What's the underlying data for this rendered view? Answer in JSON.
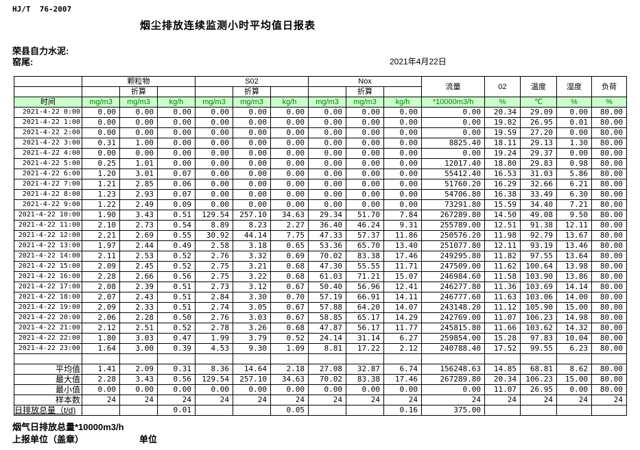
{
  "page": {
    "standard_code": "HJ/T  76-2007",
    "title": "烟尘排放连续监测小时平均值日报表",
    "company": "荣县自力水泥:",
    "location": "窑尾:",
    "date": "2021年4月22日"
  },
  "colors": {
    "header_bg": "#ccffcc",
    "unit_text": "#008000",
    "border": "#000000"
  },
  "table": {
    "time_header": "时间",
    "groups": [
      {
        "label": "颗粒物",
        "sub": "折算"
      },
      {
        "label": "S02",
        "sub": "折算"
      },
      {
        "label": "Nox",
        "sub": "折算"
      }
    ],
    "singles": [
      "流量",
      "02",
      "温度",
      "湿度",
      "负荷"
    ],
    "units": [
      "mg/m3",
      "mg/m3",
      "kg/h",
      "mg/m3",
      "mg/m3",
      "kg/h",
      "mg/m3",
      "mg/m3",
      "kg/h",
      "*10000m3/h",
      "%",
      "℃",
      "%",
      "%"
    ],
    "rows": [
      {
        "time": "2021-4-22 0:00",
        "values": [
          "0.00",
          "0.00",
          "0.00",
          "0.00",
          "0.00",
          "0.00",
          "0.00",
          "0.00",
          "0.00",
          "0.00",
          "20.34",
          "29.09",
          "0.00",
          "80.00"
        ]
      },
      {
        "time": "2021-4-22 1:00",
        "values": [
          "0.00",
          "0.00",
          "0.00",
          "0.00",
          "0.00",
          "0.00",
          "0.00",
          "0.00",
          "0.00",
          "0.00",
          "19.82",
          "26.95",
          "0.01",
          "80.00"
        ]
      },
      {
        "time": "2021-4-22 2:00",
        "values": [
          "0.00",
          "0.00",
          "0.00",
          "0.00",
          "0.00",
          "0.00",
          "0.00",
          "0.00",
          "0.00",
          "0.00",
          "19.59",
          "27.20",
          "0.00",
          "80.00"
        ]
      },
      {
        "time": "2021-4-22 3:00",
        "values": [
          "0.31",
          "1.00",
          "0.00",
          "0.00",
          "0.00",
          "0.00",
          "0.00",
          "0.00",
          "0.00",
          "8825.40",
          "18.11",
          "29.13",
          "1.30",
          "80.00"
        ]
      },
      {
        "time": "2021-4-22 4:00",
        "values": [
          "0.00",
          "0.00",
          "0.00",
          "0.00",
          "0.00",
          "0.00",
          "0.00",
          "0.00",
          "0.00",
          "0.00",
          "19.24",
          "29.37",
          "0.00",
          "80.00"
        ]
      },
      {
        "time": "2021-4-22 5:00",
        "values": [
          "0.25",
          "1.01",
          "0.00",
          "0.00",
          "0.00",
          "0.00",
          "0.00",
          "0.00",
          "0.00",
          "12017.40",
          "18.80",
          "29.83",
          "0.98",
          "80.00"
        ]
      },
      {
        "time": "2021-4-22 6:00",
        "values": [
          "1.20",
          "3.01",
          "0.07",
          "0.00",
          "0.00",
          "0.00",
          "0.00",
          "0.00",
          "0.00",
          "55412.40",
          "16.53",
          "31.03",
          "5.86",
          "80.00"
        ]
      },
      {
        "time": "2021-4-22 7:00",
        "values": [
          "1.21",
          "2.85",
          "0.06",
          "0.00",
          "0.00",
          "0.00",
          "0.00",
          "0.00",
          "0.00",
          "51760.20",
          "16.29",
          "32.66",
          "6.21",
          "80.00"
        ]
      },
      {
        "time": "2021-4-22 8:00",
        "values": [
          "1.23",
          "2.93",
          "0.07",
          "0.00",
          "0.00",
          "0.00",
          "0.00",
          "0.00",
          "0.00",
          "54706.80",
          "16.38",
          "33.49",
          "6.30",
          "80.00"
        ]
      },
      {
        "time": "2021-4-22 9:00",
        "values": [
          "1.22",
          "2.49",
          "0.09",
          "0.00",
          "0.00",
          "0.00",
          "0.00",
          "0.00",
          "0.00",
          "73291.80",
          "15.59",
          "34.40",
          "7.21",
          "80.00"
        ]
      },
      {
        "time": "2021-4-22 10:00",
        "values": [
          "1.90",
          "3.43",
          "0.51",
          "129.54",
          "257.10",
          "34.63",
          "29.34",
          "51.70",
          "7.84",
          "267289.80",
          "14.50",
          "49.08",
          "9.50",
          "80.00"
        ]
      },
      {
        "time": "2021-4-22 11:00",
        "values": [
          "2.10",
          "2.73",
          "0.54",
          "8.89",
          "8.23",
          "2.27",
          "36.40",
          "46.24",
          "9.31",
          "255789.00",
          "12.51",
          "91.38",
          "12.11",
          "80.00"
        ]
      },
      {
        "time": "2021-4-22 12:00",
        "values": [
          "2.21",
          "2.69",
          "0.55",
          "30.92",
          "44.14",
          "7.75",
          "47.33",
          "57.37",
          "11.86",
          "250576.20",
          "11.98",
          "92.79",
          "13.67",
          "80.00"
        ]
      },
      {
        "time": "2021-4-22 13:00",
        "values": [
          "1.97",
          "2.44",
          "0.49",
          "2.58",
          "3.18",
          "0.65",
          "53.36",
          "65.70",
          "13.40",
          "251077.80",
          "12.11",
          "93.19",
          "13.46",
          "80.00"
        ]
      },
      {
        "time": "2021-4-22 14:00",
        "values": [
          "2.11",
          "2.53",
          "0.52",
          "2.76",
          "3.32",
          "0.69",
          "70.02",
          "83.38",
          "17.46",
          "249295.80",
          "11.82",
          "97.55",
          "13.64",
          "80.00"
        ]
      },
      {
        "time": "2021-4-22 15:00",
        "values": [
          "2.09",
          "2.45",
          "0.52",
          "2.75",
          "3.21",
          "0.68",
          "47.30",
          "55.55",
          "11.71",
          "247509.00",
          "11.62",
          "100.64",
          "13.98",
          "80.00"
        ]
      },
      {
        "time": "2021-4-22 16:00",
        "values": [
          "2.28",
          "2.66",
          "0.56",
          "2.75",
          "3.22",
          "0.68",
          "61.03",
          "71.21",
          "15.07",
          "246984.60",
          "11.58",
          "103.90",
          "13.86",
          "80.00"
        ]
      },
      {
        "time": "2021-4-22 17:00",
        "values": [
          "2.08",
          "2.39",
          "0.51",
          "2.73",
          "3.12",
          "0.67",
          "50.40",
          "56.96",
          "12.41",
          "246277.80",
          "11.36",
          "103.69",
          "14.14",
          "80.00"
        ]
      },
      {
        "time": "2021-4-22 18:00",
        "values": [
          "2.07",
          "2.43",
          "0.51",
          "2.84",
          "3.30",
          "0.70",
          "57.19",
          "66.91",
          "14.11",
          "246777.60",
          "11.63",
          "103.06",
          "14.00",
          "80.00"
        ]
      },
      {
        "time": "2021-4-22 19:00",
        "values": [
          "2.09",
          "2.33",
          "0.51",
          "2.74",
          "3.05",
          "0.67",
          "57.88",
          "64.20",
          "14.07",
          "243148.20",
          "11.12",
          "105.90",
          "15.00",
          "80.00"
        ]
      },
      {
        "time": "2021-4-22 20:00",
        "values": [
          "2.06",
          "2.28",
          "0.50",
          "2.76",
          "3.03",
          "0.67",
          "58.85",
          "65.17",
          "14.29",
          "242769.00",
          "11.07",
          "106.23",
          "14.98",
          "80.00"
        ]
      },
      {
        "time": "2021-4-22 21:00",
        "values": [
          "2.12",
          "2.51",
          "0.52",
          "2.78",
          "3.26",
          "0.68",
          "47.87",
          "56.17",
          "11.77",
          "245815.80",
          "11.66",
          "103.62",
          "14.32",
          "80.00"
        ]
      },
      {
        "time": "2021-4-22 22:00",
        "values": [
          "1.80",
          "3.03",
          "0.47",
          "1.99",
          "3.79",
          "0.52",
          "24.14",
          "31.14",
          "6.27",
          "259854.00",
          "15.28",
          "97.83",
          "10.04",
          "80.00"
        ]
      },
      {
        "time": "2021-4-22 23:00",
        "values": [
          "1.64",
          "3.00",
          "0.39",
          "4.53",
          "9.30",
          "1.09",
          "8.81",
          "17.22",
          "2.12",
          "240788.40",
          "17.52",
          "99.55",
          "6.23",
          "80.00"
        ]
      }
    ],
    "summary_rows": [
      {
        "label": "平均值",
        "values": [
          "1.41",
          "2.09",
          "0.31",
          "8.36",
          "14.64",
          "2.18",
          "27.08",
          "32.87",
          "6.74",
          "156248.63",
          "14.85",
          "68.81",
          "8.62",
          "80.00"
        ]
      },
      {
        "label": "最大值",
        "values": [
          "2.28",
          "3.43",
          "0.56",
          "129.54",
          "257.10",
          "34.63",
          "70.02",
          "83.38",
          "17.46",
          "267289.80",
          "20.34",
          "106.23",
          "15.00",
          "80.00"
        ]
      },
      {
        "label": "最小值",
        "values": [
          "0.00",
          "0.00",
          "0.00",
          "0.00",
          "0.00",
          "0.00",
          "0.00",
          "0.00",
          "0.00",
          "0.00",
          "11.07",
          "26.95",
          "0.00",
          "80.00"
        ]
      },
      {
        "label": "样本数",
        "values": [
          "24",
          "24",
          "24",
          "24",
          "24",
          "24",
          "24",
          "24",
          "24",
          "24",
          "24",
          "24",
          "24",
          "24"
        ]
      }
    ],
    "total_row": {
      "label": "日排放总量（t/d)",
      "values": [
        "",
        "",
        "0.01",
        "",
        "",
        "0.05",
        "",
        "",
        "0.16",
        "375.00",
        "",
        "",
        "",
        ""
      ]
    }
  },
  "footer": {
    "flue_note": "烟气日排放总量*10000m3/h",
    "report_unit": "上报单位（盖章）",
    "unit_label": "单位"
  }
}
